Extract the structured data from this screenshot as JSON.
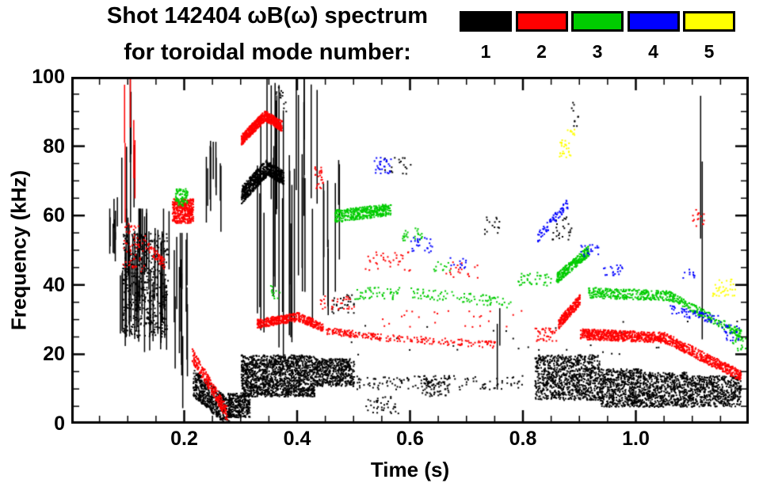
{
  "header": {
    "title": "Shot 142404 ωB(ω) spectrum",
    "subtitle": "for toroidal mode number:"
  },
  "chart_data": {
    "type": "scatter",
    "title": "Shot 142404 ωB(ω) spectrum for toroidal mode numbers 1-5",
    "xlabel": "Time (s)",
    "ylabel": "Frequency (kHz)",
    "xlim": [
      0.0,
      1.2
    ],
    "ylim": [
      0,
      100
    ],
    "xticks": [
      0.2,
      0.4,
      0.6,
      0.8,
      1.0
    ],
    "xtick_labels": [
      "0.2",
      "0.4",
      "0.6",
      "0.8",
      "1.0"
    ],
    "xminor": 0.05,
    "yticks": [
      0,
      20,
      40,
      60,
      80,
      100
    ],
    "ytick_labels": [
      "0",
      "20",
      "40",
      "60",
      "80",
      "100"
    ],
    "yminor": 5,
    "grid": false,
    "legend_position": "top-right",
    "frame_color": "#000000",
    "background": "#ffffff",
    "legend": [
      {
        "label": "1",
        "color": "#000000"
      },
      {
        "label": "2",
        "color": "#ff0000"
      },
      {
        "label": "3",
        "color": "#00cc00"
      },
      {
        "label": "4",
        "color": "#0000ff"
      },
      {
        "label": "5",
        "color": "#ffff00"
      }
    ],
    "series": [
      {
        "name": "toroidal mode n=1",
        "mode": 1,
        "color": "#000000",
        "clusters": [
          {
            "k": "streaks",
            "t": [
              0.063,
              0.085
            ],
            "f": [
              45,
              66
            ],
            "n": 8
          },
          {
            "k": "streaks",
            "t": [
              0.085,
              0.175
            ],
            "f": [
              20,
              62
            ],
            "n": 48
          },
          {
            "k": "streaks",
            "t": [
              0.088,
              0.112
            ],
            "f": [
              55,
              100
            ],
            "n": 6
          },
          {
            "k": "blob",
            "t": [
              0.09,
              0.17
            ],
            "f": [
              25,
              55
            ],
            "n": 500,
            "s": 2
          },
          {
            "k": "streaks",
            "t": [
              0.175,
              0.205
            ],
            "f": [
              3,
              55
            ],
            "n": 14
          },
          {
            "k": "streaks",
            "t": [
              0.238,
              0.268
            ],
            "f": [
              55,
              82
            ],
            "n": 10
          },
          {
            "k": "trace",
            "t": [
              0.215,
              0.28
            ],
            "f": [
              12,
              3
            ],
            "w": 8,
            "n": 500,
            "s": 2
          },
          {
            "k": "blob",
            "t": [
              0.275,
              0.315
            ],
            "f": [
              2,
              9
            ],
            "n": 300,
            "s": 2
          },
          {
            "k": "trace",
            "t": [
              0.3,
              0.345
            ],
            "f": [
              66,
              74
            ],
            "w": 5,
            "n": 450,
            "s": 2
          },
          {
            "k": "trace",
            "t": [
              0.345,
              0.375
            ],
            "f": [
              74,
              71
            ],
            "w": 4,
            "n": 250,
            "s": 2
          },
          {
            "k": "streaks",
            "t": [
              0.325,
              0.44
            ],
            "f": [
              18,
              100
            ],
            "n": 30
          },
          {
            "k": "blob",
            "t": [
              0.3,
              0.43
            ],
            "f": [
              8,
              20
            ],
            "n": 1400,
            "s": 2
          },
          {
            "k": "blob",
            "t": [
              0.43,
              0.5
            ],
            "f": [
              11,
              19
            ],
            "n": 500,
            "s": 2
          },
          {
            "k": "streaks",
            "t": [
              0.44,
              0.475
            ],
            "f": [
              28,
              76
            ],
            "n": 8
          },
          {
            "k": "blob",
            "t": [
              0.5,
              0.8
            ],
            "f": [
              10,
              14
            ],
            "n": 120,
            "s": 2
          },
          {
            "k": "blob",
            "t": [
              0.52,
              0.58
            ],
            "f": [
              3,
              8
            ],
            "n": 40,
            "s": 2
          },
          {
            "k": "blob",
            "t": [
              0.62,
              0.67
            ],
            "f": [
              8,
              14
            ],
            "n": 80,
            "s": 2
          },
          {
            "k": "streaks",
            "t": [
              0.752,
              0.76
            ],
            "f": [
              8,
              35
            ],
            "n": 2
          },
          {
            "k": "blob",
            "t": [
              0.46,
              0.5
            ],
            "f": [
              32,
              38
            ],
            "n": 30,
            "s": 2
          },
          {
            "k": "blob",
            "t": [
              0.55,
              0.6
            ],
            "f": [
              72,
              78
            ],
            "n": 20,
            "s": 2
          },
          {
            "k": "blob",
            "t": [
              0.73,
              0.76
            ],
            "f": [
              54,
              60
            ],
            "n": 15,
            "s": 2
          },
          {
            "k": "blob",
            "t": [
              0.82,
              0.935
            ],
            "f": [
              7,
              20
            ],
            "n": 900,
            "s": 2
          },
          {
            "k": "blob",
            "t": [
              0.935,
              1.01
            ],
            "f": [
              5,
              16
            ],
            "n": 600,
            "s": 2
          },
          {
            "k": "blob",
            "t": [
              1.01,
              1.09
            ],
            "f": [
              5,
              15
            ],
            "n": 550,
            "s": 2
          },
          {
            "k": "blob",
            "t": [
              1.09,
              1.185
            ],
            "f": [
              5,
              14
            ],
            "n": 550,
            "s": 2
          },
          {
            "k": "blob",
            "t": [
              0.85,
              0.89
            ],
            "f": [
              53,
              60
            ],
            "n": 25,
            "s": 2
          },
          {
            "k": "streaks",
            "t": [
              1.112,
              1.122
            ],
            "f": [
              20,
              95
            ],
            "n": 2
          },
          {
            "k": "blob",
            "t": [
              0.36,
              0.38
            ],
            "f": [
              90,
              98
            ],
            "n": 15,
            "s": 2
          },
          {
            "k": "blob",
            "t": [
              0.885,
              0.9
            ],
            "f": [
              86,
              93
            ],
            "n": 10,
            "s": 2
          },
          {
            "k": "blob",
            "t": [
              0.45,
              1.18
            ],
            "f": [
              20,
              30
            ],
            "n": 30,
            "s": 2
          }
        ]
      },
      {
        "name": "toroidal mode n=2",
        "mode": 2,
        "color": "#ff0000",
        "clusters": [
          {
            "k": "streaks",
            "t": [
              0.092,
              0.112
            ],
            "f": [
              58,
              100
            ],
            "n": 5
          },
          {
            "k": "blob",
            "t": [
              0.09,
              0.13
            ],
            "f": [
              44,
              58
            ],
            "n": 60,
            "s": 2
          },
          {
            "k": "trace",
            "t": [
              0.13,
              0.165
            ],
            "f": [
              52,
              46
            ],
            "w": 3,
            "n": 60,
            "s": 2
          },
          {
            "k": "blob",
            "t": [
              0.178,
              0.215
            ],
            "f": [
              58,
              65
            ],
            "n": 350,
            "s": 2
          },
          {
            "k": "trace",
            "t": [
              0.213,
              0.275
            ],
            "f": [
              20,
              3
            ],
            "w": 4,
            "n": 250,
            "s": 2
          },
          {
            "k": "trace",
            "t": [
              0.3,
              0.342
            ],
            "f": [
              82,
              89
            ],
            "w": 3,
            "n": 400,
            "s": 2
          },
          {
            "k": "trace",
            "t": [
              0.342,
              0.372
            ],
            "f": [
              89,
              86
            ],
            "w": 3,
            "n": 250,
            "s": 2
          },
          {
            "k": "trace",
            "t": [
              0.328,
              0.4
            ],
            "f": [
              29,
              31
            ],
            "w": 2.5,
            "n": 280,
            "s": 2
          },
          {
            "k": "trace",
            "t": [
              0.4,
              0.445
            ],
            "f": [
              31,
              28
            ],
            "w": 2.5,
            "n": 150,
            "s": 2
          },
          {
            "k": "blob",
            "t": [
              0.43,
              0.445
            ],
            "f": [
              68,
              75
            ],
            "n": 25,
            "s": 2
          },
          {
            "k": "blob",
            "t": [
              0.44,
              0.5
            ],
            "f": [
              33,
              37
            ],
            "n": 30,
            "s": 2
          },
          {
            "k": "trace",
            "t": [
              0.45,
              0.55
            ],
            "f": [
              27,
              25
            ],
            "w": 2,
            "n": 120,
            "s": 2
          },
          {
            "k": "blob",
            "t": [
              0.52,
              0.6
            ],
            "f": [
              44,
              50
            ],
            "n": 35,
            "s": 2
          },
          {
            "k": "trace",
            "t": [
              0.55,
              0.75
            ],
            "f": [
              25,
              23
            ],
            "w": 2,
            "n": 110,
            "s": 2
          },
          {
            "k": "blob",
            "t": [
              0.66,
              0.72
            ],
            "f": [
              42,
              47
            ],
            "n": 20,
            "s": 2
          },
          {
            "k": "blob",
            "t": [
              0.55,
              0.8
            ],
            "f": [
              28,
              33
            ],
            "n": 25,
            "s": 2
          },
          {
            "k": "blob",
            "t": [
              0.82,
              0.86
            ],
            "f": [
              24,
              28
            ],
            "n": 40,
            "s": 2
          },
          {
            "k": "trace",
            "t": [
              0.862,
              0.9
            ],
            "f": [
              29,
              36
            ],
            "w": 3,
            "n": 220,
            "s": 2
          },
          {
            "k": "trace",
            "t": [
              0.9,
              1.05
            ],
            "f": [
              26,
              25
            ],
            "w": 3,
            "n": 600,
            "s": 2
          },
          {
            "k": "trace",
            "t": [
              1.05,
              1.185
            ],
            "f": [
              25,
              14
            ],
            "w": 3,
            "n": 450,
            "s": 2
          },
          {
            "k": "blob",
            "t": [
              1.09,
              1.12
            ],
            "f": [
              57,
              62
            ],
            "n": 15,
            "s": 2
          }
        ]
      },
      {
        "name": "toroidal mode n=3",
        "mode": 3,
        "color": "#00cc00",
        "clusters": [
          {
            "k": "blob",
            "t": [
              0.183,
              0.205
            ],
            "f": [
              63,
              68
            ],
            "n": 80,
            "s": 2
          },
          {
            "k": "blob",
            "t": [
              0.35,
              0.37
            ],
            "f": [
              36,
              40
            ],
            "n": 12,
            "s": 2
          },
          {
            "k": "trace",
            "t": [
              0.465,
              0.565
            ],
            "f": [
              60,
              62
            ],
            "w": 3.5,
            "n": 400,
            "s": 2
          },
          {
            "k": "blob",
            "t": [
              0.5,
              0.58
            ],
            "f": [
              36,
              40
            ],
            "n": 50,
            "s": 2
          },
          {
            "k": "blob",
            "t": [
              0.585,
              0.62
            ],
            "f": [
              53,
              57
            ],
            "n": 25,
            "s": 2
          },
          {
            "k": "trace",
            "t": [
              0.6,
              0.78
            ],
            "f": [
              38,
              35
            ],
            "w": 3,
            "n": 90,
            "s": 2
          },
          {
            "k": "blob",
            "t": [
              0.64,
              0.67
            ],
            "f": [
              44,
              47
            ],
            "n": 12,
            "s": 2
          },
          {
            "k": "blob",
            "t": [
              0.79,
              0.85
            ],
            "f": [
              40,
              44
            ],
            "n": 40,
            "s": 2
          },
          {
            "k": "trace",
            "t": [
              0.858,
              0.915
            ],
            "f": [
              42,
              50
            ],
            "w": 3,
            "n": 260,
            "s": 2
          },
          {
            "k": "trace",
            "t": [
              0.915,
              1.06
            ],
            "f": [
              38,
              37
            ],
            "w": 3,
            "n": 300,
            "s": 2
          },
          {
            "k": "trace",
            "t": [
              1.06,
              1.185
            ],
            "f": [
              37,
              26
            ],
            "w": 2.5,
            "n": 220,
            "s": 2
          },
          {
            "k": "blob",
            "t": [
              1.17,
              1.195
            ],
            "f": [
              21,
              25
            ],
            "n": 20,
            "s": 2
          }
        ]
      },
      {
        "name": "toroidal mode n=4",
        "mode": 4,
        "color": "#0000ff",
        "clusters": [
          {
            "k": "blob",
            "t": [
              0.535,
              0.565
            ],
            "f": [
              72,
              77
            ],
            "n": 30,
            "s": 2
          },
          {
            "k": "blob",
            "t": [
              0.6,
              0.64
            ],
            "f": [
              49,
              54
            ],
            "n": 25,
            "s": 2
          },
          {
            "k": "blob",
            "t": [
              0.67,
              0.7
            ],
            "f": [
              45,
              48
            ],
            "n": 12,
            "s": 2
          },
          {
            "k": "trace",
            "t": [
              0.825,
              0.88
            ],
            "f": [
              54,
              64
            ],
            "w": 3,
            "n": 70,
            "s": 2
          },
          {
            "k": "blob",
            "t": [
              0.9,
              0.935
            ],
            "f": [
              48,
              52
            ],
            "n": 20,
            "s": 2
          },
          {
            "k": "blob",
            "t": [
              0.94,
              0.975
            ],
            "f": [
              43,
              46
            ],
            "n": 20,
            "s": 2
          },
          {
            "k": "blob",
            "t": [
              1.08,
              1.11
            ],
            "f": [
              42,
              45
            ],
            "n": 10,
            "s": 2
          },
          {
            "k": "trace",
            "t": [
              1.06,
              1.15
            ],
            "f": [
              33,
              30
            ],
            "w": 2.5,
            "n": 60,
            "s": 2
          },
          {
            "k": "blob",
            "t": [
              1.15,
              1.185
            ],
            "f": [
              24,
              29
            ],
            "n": 25,
            "s": 2
          }
        ]
      },
      {
        "name": "toroidal mode n=5",
        "mode": 5,
        "color": "#ffff00",
        "clusters": [
          {
            "k": "blob",
            "t": [
              0.862,
              0.885
            ],
            "f": [
              77,
              82
            ],
            "n": 25,
            "s": 2
          },
          {
            "k": "blob",
            "t": [
              0.875,
              0.89
            ],
            "f": [
              83,
              86
            ],
            "n": 8,
            "s": 2
          },
          {
            "k": "blob",
            "t": [
              1.135,
              1.175
            ],
            "f": [
              37,
              42
            ],
            "n": 35,
            "s": 2
          }
        ]
      }
    ]
  }
}
